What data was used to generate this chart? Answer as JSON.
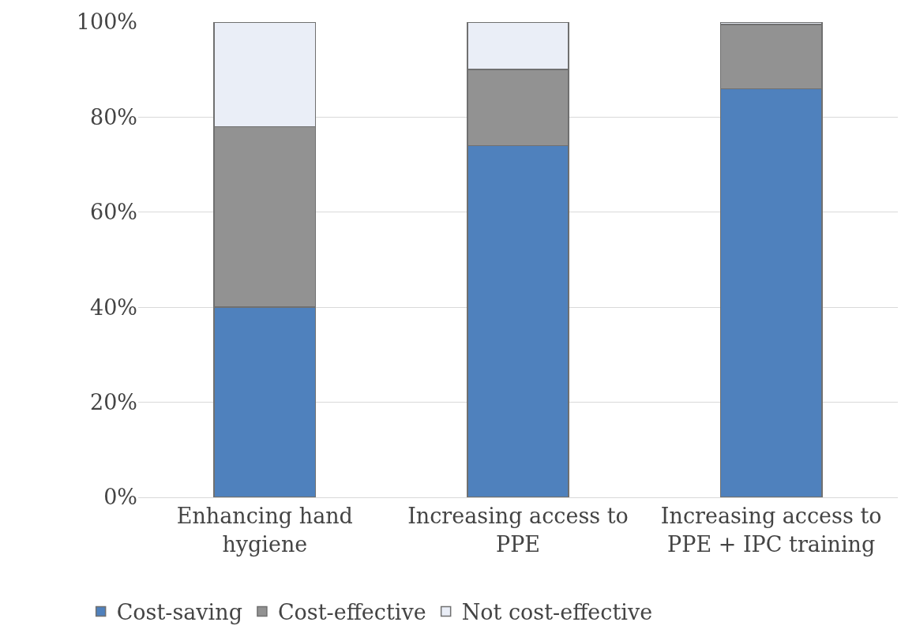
{
  "chart_data": {
    "type": "bar",
    "stacked": true,
    "categories": [
      "Enhancing hand hygiene",
      "Increasing access to PPE",
      "Increasing access to PPE + IPC training"
    ],
    "series": [
      {
        "name": "Cost-saving",
        "color": "#4f81bd",
        "values": [
          40,
          74,
          86
        ]
      },
      {
        "name": "Cost-effective",
        "color": "#929292",
        "values": [
          38,
          16,
          13.5
        ]
      },
      {
        "name": "Not cost-effective",
        "color": "#eaeef7",
        "values": [
          22,
          10,
          0.5
        ]
      }
    ],
    "ylim": [
      0,
      100
    ],
    "yticks": [
      {
        "value": 0,
        "label": "0%"
      },
      {
        "value": 20,
        "label": "20%"
      },
      {
        "value": 40,
        "label": "40%"
      },
      {
        "value": 60,
        "label": "60%"
      },
      {
        "value": 80,
        "label": "80%"
      },
      {
        "value": 100,
        "label": "100%"
      }
    ],
    "grid": "y",
    "legend": "bottom"
  }
}
